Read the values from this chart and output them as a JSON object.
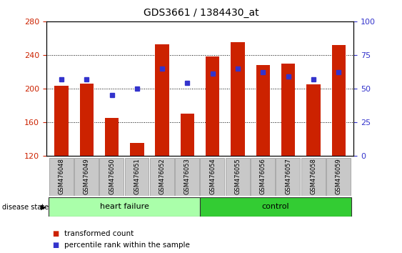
{
  "title": "GDS3661 / 1384430_at",
  "samples": [
    "GSM476048",
    "GSM476049",
    "GSM476050",
    "GSM476051",
    "GSM476052",
    "GSM476053",
    "GSM476054",
    "GSM476055",
    "GSM476056",
    "GSM476057",
    "GSM476058",
    "GSM476059"
  ],
  "red_values": [
    203,
    206,
    165,
    135,
    253,
    170,
    238,
    255,
    228,
    230,
    205,
    252
  ],
  "blue_pct": [
    57,
    57,
    45,
    50,
    65,
    54,
    61,
    65,
    62,
    59,
    57,
    62
  ],
  "y_min": 120,
  "y_max": 280,
  "y_ticks_left": [
    120,
    160,
    200,
    240,
    280
  ],
  "y_ticks_right": [
    0,
    25,
    50,
    75,
    100
  ],
  "bar_color": "#CC2200",
  "dot_color": "#3333CC",
  "bar_width": 0.55,
  "plot_bg": "#FFFFFF",
  "tick_bg": "#C8C8C8",
  "tick_edge": "#AAAAAA",
  "hf_color": "#AAFFAA",
  "ctrl_color": "#33CC33",
  "border_color": "#333333",
  "disease_label": "disease state",
  "hf_label": "heart failure",
  "ctrl_label": "control",
  "legend_red": "transformed count",
  "legend_blue": "percentile rank within the sample",
  "title_fontsize": 10,
  "axis_tick_fontsize": 8,
  "sample_fontsize": 6,
  "group_fontsize": 8,
  "legend_fontsize": 7.5
}
